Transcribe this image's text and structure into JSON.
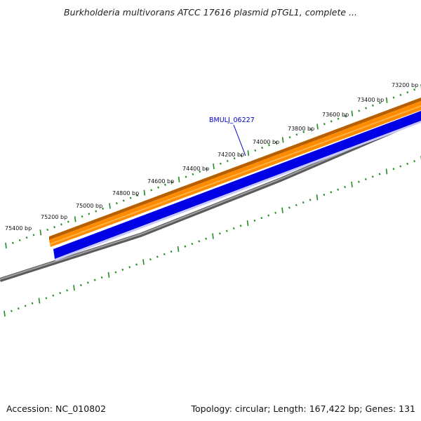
{
  "title": "Burkholderia multivorans ATCC 17616 plasmid pTGL1, complete ...",
  "footer": {
    "accession": "Accession: NC_010802",
    "summary": "Topology: circular; Length: 167,422 bp; Genes: 131"
  },
  "gene": {
    "label": "BMULJ_06227"
  },
  "ruler_labels": [
    "73200 bp",
    "73400 bp",
    "73600 bp",
    "73800 bp",
    "74000 bp",
    "74200 bp",
    "74400 bp",
    "74600 bp",
    "74800 bp",
    "75000 bp",
    "75200 bp",
    "75400 bp"
  ],
  "colors": {
    "forward_gene": "#ff8c00",
    "forward_edge": "#b86000",
    "reverse_gene": "#0000e6",
    "backbone": "#808080",
    "ruler_ticks": "#228b22",
    "gene_label": "#0000cc"
  }
}
